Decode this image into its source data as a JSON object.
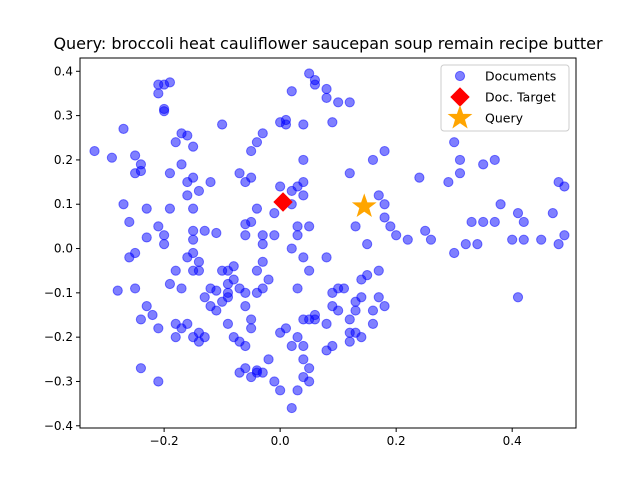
{
  "chart_data": {
    "type": "scatter",
    "title": "Query: broccoli heat cauliflower saucepan soup remain recipe butter",
    "xlabel": "",
    "ylabel": "",
    "xlim": [
      -0.345,
      0.51
    ],
    "ylim": [
      -0.405,
      0.43
    ],
    "x_ticks": [
      -0.2,
      0.0,
      0.2,
      0.4
    ],
    "x_tick_labels": [
      "−0.2",
      "0.0",
      "0.2",
      "0.4"
    ],
    "y_ticks": [
      -0.4,
      -0.3,
      -0.2,
      -0.1,
      0.0,
      0.1,
      0.2,
      0.3,
      0.4
    ],
    "y_tick_labels": [
      "−0.4",
      "−0.3",
      "−0.2",
      "−0.1",
      "0.0",
      "0.1",
      "0.2",
      "0.3",
      "0.4"
    ],
    "grid": false,
    "legend": "top-right",
    "series": [
      {
        "name": "Documents",
        "marker": "circle",
        "color": "#0000ff",
        "points": [
          [
            -0.32,
            0.22
          ],
          [
            -0.29,
            0.205
          ],
          [
            -0.27,
            0.27
          ],
          [
            -0.27,
            0.1
          ],
          [
            -0.26,
            0.06
          ],
          [
            -0.25,
            0.21
          ],
          [
            -0.25,
            0.17
          ],
          [
            -0.24,
            0.19
          ],
          [
            -0.24,
            0.175
          ],
          [
            -0.25,
            -0.01
          ],
          [
            -0.26,
            -0.02
          ],
          [
            -0.25,
            -0.09
          ],
          [
            -0.28,
            -0.095
          ],
          [
            -0.23,
            -0.13
          ],
          [
            -0.24,
            -0.16
          ],
          [
            -0.24,
            -0.27
          ],
          [
            -0.23,
            0.09
          ],
          [
            -0.23,
            0.025
          ],
          [
            -0.21,
            0.35
          ],
          [
            -0.21,
            0.37
          ],
          [
            -0.2,
            0.37
          ],
          [
            -0.19,
            0.375
          ],
          [
            -0.2,
            0.315
          ],
          [
            -0.2,
            0.31
          ],
          [
            -0.21,
            0.05
          ],
          [
            -0.2,
            0.03
          ],
          [
            -0.2,
            0.01
          ],
          [
            -0.19,
            0.09
          ],
          [
            -0.19,
            0.17
          ],
          [
            -0.18,
            0.24
          ],
          [
            -0.17,
            0.26
          ],
          [
            -0.16,
            0.255
          ],
          [
            -0.15,
            0.23
          ],
          [
            -0.17,
            0.19
          ],
          [
            -0.16,
            0.15
          ],
          [
            -0.15,
            0.16
          ],
          [
            -0.16,
            0.12
          ],
          [
            -0.14,
            0.13
          ],
          [
            -0.15,
            0.09
          ],
          [
            -0.19,
            -0.08
          ],
          [
            -0.18,
            -0.05
          ],
          [
            -0.17,
            -0.09
          ],
          [
            -0.16,
            -0.02
          ],
          [
            -0.15,
            -0.01
          ],
          [
            -0.14,
            -0.03
          ],
          [
            -0.15,
            -0.05
          ],
          [
            -0.14,
            -0.05
          ],
          [
            -0.15,
            0.02
          ],
          [
            -0.15,
            0.04
          ],
          [
            -0.13,
            0.04
          ],
          [
            -0.12,
            0.15
          ],
          [
            -0.11,
            0.035
          ],
          [
            -0.1,
            0.28
          ],
          [
            -0.1,
            -0.05
          ],
          [
            -0.13,
            -0.11
          ],
          [
            -0.12,
            -0.13
          ],
          [
            -0.11,
            -0.14
          ],
          [
            -0.09,
            -0.1
          ],
          [
            -0.09,
            -0.08
          ],
          [
            -0.09,
            -0.05
          ],
          [
            -0.18,
            -0.17
          ],
          [
            -0.17,
            -0.18
          ],
          [
            -0.18,
            -0.2
          ],
          [
            -0.16,
            -0.17
          ],
          [
            -0.15,
            -0.2
          ],
          [
            -0.14,
            -0.21
          ],
          [
            -0.14,
            -0.19
          ],
          [
            -0.13,
            -0.2
          ],
          [
            -0.21,
            -0.18
          ],
          [
            -0.22,
            -0.15
          ],
          [
            -0.21,
            -0.3
          ],
          [
            -0.09,
            -0.17
          ],
          [
            -0.08,
            -0.2
          ],
          [
            -0.07,
            -0.21
          ],
          [
            -0.07,
            -0.28
          ],
          [
            -0.06,
            -0.27
          ],
          [
            -0.05,
            -0.29
          ],
          [
            -0.04,
            -0.28
          ],
          [
            -0.06,
            -0.22
          ],
          [
            -0.05,
            -0.18
          ],
          [
            -0.05,
            -0.16
          ],
          [
            -0.12,
            -0.09
          ],
          [
            -0.11,
            -0.095
          ],
          [
            -0.1,
            -0.12
          ],
          [
            -0.09,
            -0.11
          ],
          [
            -0.08,
            -0.07
          ],
          [
            -0.08,
            -0.04
          ],
          [
            -0.07,
            -0.09
          ],
          [
            -0.06,
            -0.1
          ],
          [
            -0.06,
            -0.13
          ],
          [
            -0.06,
            0.055
          ],
          [
            -0.06,
            0.03
          ],
          [
            -0.05,
            0.06
          ],
          [
            -0.04,
            0.09
          ],
          [
            -0.03,
            0.03
          ],
          [
            -0.03,
            0.01
          ],
          [
            -0.04,
            -0.05
          ],
          [
            -0.03,
            -0.03
          ],
          [
            -0.02,
            -0.07
          ],
          [
            -0.04,
            -0.1
          ],
          [
            -0.03,
            -0.09
          ],
          [
            -0.07,
            0.17
          ],
          [
            -0.06,
            0.15
          ],
          [
            -0.05,
            0.16
          ],
          [
            -0.05,
            0.22
          ],
          [
            -0.04,
            0.24
          ],
          [
            -0.03,
            0.26
          ],
          [
            -0.01,
            0.08
          ],
          [
            -0.01,
            0.03
          ],
          [
            0.0,
            0.14
          ],
          [
            0.02,
            0.13
          ],
          [
            0.02,
            0.1
          ],
          [
            0.03,
            0.14
          ],
          [
            0.04,
            0.15
          ],
          [
            0.04,
            0.12
          ],
          [
            0.05,
            0.05
          ],
          [
            0.03,
            0.05
          ],
          [
            0.02,
            0.0
          ],
          [
            0.03,
            0.03
          ],
          [
            0.04,
            -0.02
          ],
          [
            0.05,
            -0.05
          ],
          [
            0.0,
            0.285
          ],
          [
            0.01,
            0.28
          ],
          [
            0.01,
            0.29
          ],
          [
            0.02,
            0.355
          ],
          [
            0.04,
            0.28
          ],
          [
            0.04,
            0.2
          ],
          [
            0.05,
            0.395
          ],
          [
            0.06,
            0.38
          ],
          [
            0.06,
            0.37
          ],
          [
            0.08,
            0.36
          ],
          [
            0.08,
            0.34
          ],
          [
            0.1,
            0.33
          ],
          [
            0.09,
            0.285
          ],
          [
            0.12,
            0.33
          ],
          [
            0.12,
            0.17
          ],
          [
            0.0,
            -0.19
          ],
          [
            0.01,
            -0.18
          ],
          [
            0.02,
            -0.22
          ],
          [
            0.03,
            -0.2
          ],
          [
            0.03,
            -0.09
          ],
          [
            0.04,
            -0.16
          ],
          [
            0.05,
            -0.16
          ],
          [
            0.06,
            -0.16
          ],
          [
            0.04,
            -0.22
          ],
          [
            0.04,
            -0.25
          ],
          [
            0.05,
            -0.27
          ],
          [
            0.04,
            -0.29
          ],
          [
            0.05,
            -0.3
          ],
          [
            0.03,
            -0.32
          ],
          [
            0.02,
            -0.36
          ],
          [
            0.0,
            -0.32
          ],
          [
            -0.01,
            -0.3
          ],
          [
            -0.02,
            -0.25
          ],
          [
            -0.04,
            -0.275
          ],
          [
            -0.03,
            -0.28
          ],
          [
            0.08,
            -0.17
          ],
          [
            0.09,
            -0.1
          ],
          [
            0.09,
            -0.13
          ],
          [
            0.1,
            -0.14
          ],
          [
            0.1,
            -0.09
          ],
          [
            0.11,
            -0.09
          ],
          [
            0.12,
            -0.16
          ],
          [
            0.12,
            -0.19
          ],
          [
            0.12,
            -0.21
          ],
          [
            0.13,
            -0.14
          ],
          [
            0.13,
            -0.12
          ],
          [
            0.14,
            -0.11
          ],
          [
            0.14,
            -0.07
          ],
          [
            0.15,
            -0.06
          ],
          [
            0.16,
            -0.14
          ],
          [
            0.16,
            -0.17
          ],
          [
            0.17,
            -0.11
          ],
          [
            0.18,
            -0.13
          ],
          [
            0.17,
            -0.05
          ],
          [
            0.09,
            -0.22
          ],
          [
            0.13,
            -0.19
          ],
          [
            0.14,
            -0.2
          ],
          [
            0.08,
            -0.23
          ],
          [
            0.08,
            -0.02
          ],
          [
            0.06,
            -0.15
          ],
          [
            0.13,
            0.05
          ],
          [
            0.15,
            0.01
          ],
          [
            0.16,
            0.2
          ],
          [
            0.17,
            0.12
          ],
          [
            0.18,
            0.22
          ],
          [
            0.18,
            0.1
          ],
          [
            0.18,
            0.07
          ],
          [
            0.19,
            0.05
          ],
          [
            0.2,
            0.03
          ],
          [
            0.22,
            0.02
          ],
          [
            0.24,
            0.16
          ],
          [
            0.25,
            0.04
          ],
          [
            0.26,
            0.02
          ],
          [
            0.29,
            0.15
          ],
          [
            0.3,
            -0.01
          ],
          [
            0.3,
            0.24
          ],
          [
            0.31,
            0.2
          ],
          [
            0.31,
            0.17
          ],
          [
            0.32,
            0.01
          ],
          [
            0.33,
            0.06
          ],
          [
            0.34,
            0.01
          ],
          [
            0.35,
            0.19
          ],
          [
            0.35,
            0.06
          ],
          [
            0.37,
            0.2
          ],
          [
            0.38,
            0.1
          ],
          [
            0.37,
            0.06
          ],
          [
            0.4,
            0.02
          ],
          [
            0.41,
            0.08
          ],
          [
            0.42,
            0.02
          ],
          [
            0.42,
            0.06
          ],
          [
            0.45,
            0.02
          ],
          [
            0.47,
            0.08
          ],
          [
            0.48,
            0.15
          ],
          [
            0.49,
            0.14
          ],
          [
            0.48,
            0.01
          ],
          [
            0.49,
            0.03
          ],
          [
            0.41,
            -0.11
          ]
        ]
      },
      {
        "name": "Doc. Target",
        "marker": "diamond",
        "color": "#ff0000",
        "points": [
          [
            0.005,
            0.105
          ]
        ]
      },
      {
        "name": "Query",
        "marker": "star",
        "color": "#ffa500",
        "points": [
          [
            0.145,
            0.095
          ]
        ]
      }
    ]
  }
}
